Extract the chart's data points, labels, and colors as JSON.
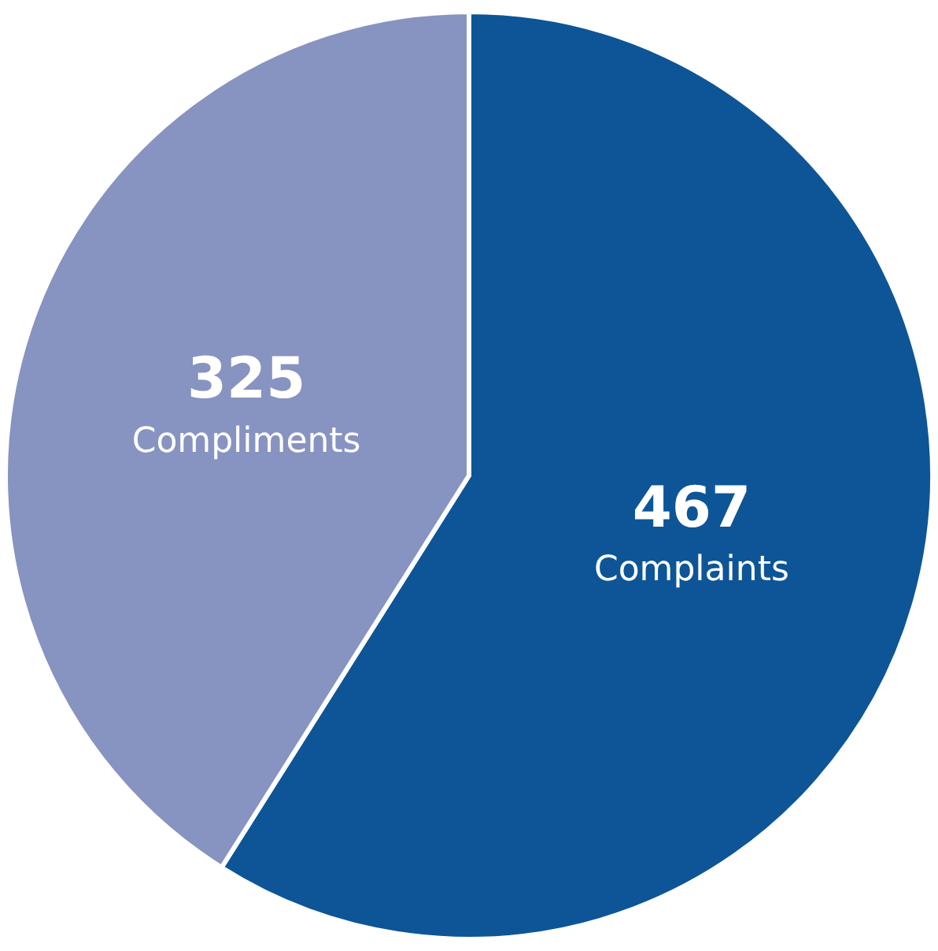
{
  "chart_data": {
    "type": "pie",
    "categories": [
      "Complaints",
      "Compliments"
    ],
    "values": [
      467,
      325
    ],
    "colors": [
      "#0d5597",
      "#8793c0"
    ],
    "data_labels": true,
    "legend": false
  }
}
